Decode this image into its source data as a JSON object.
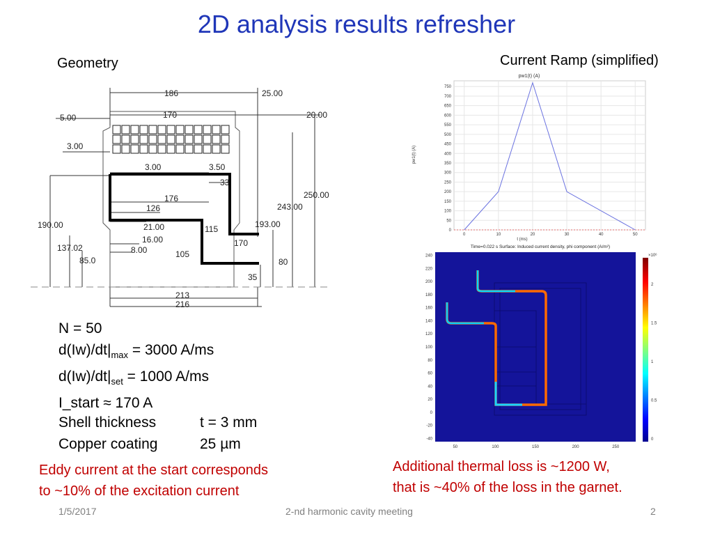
{
  "slide": {
    "title": "2D analysis results refresher",
    "geometry_label": "Geometry",
    "ramp_label": "Current Ramp (simplified)",
    "params": {
      "n": "N = 50",
      "didt_max_a": "d(Iw)/dt|",
      "didt_max_sub": "max",
      "didt_max_b": " = 3000 A/ms",
      "didt_set_a": "d(Iw)/dt|",
      "didt_set_sub": "set",
      "didt_set_b": "  = 1000 A/ms",
      "istart": "I_start ≈ 170 A"
    },
    "materials": {
      "shell_label": "Shell thickness",
      "shell_value": "t = 3 mm",
      "copper_label": "Copper coating",
      "copper_value": "25 µm"
    },
    "note_left": [
      "Eddy current at the start corresponds",
      "to  ~10% of the excitation current"
    ],
    "note_right": [
      "Additional thermal loss is ~1200 W,",
      "that is ~40% of the loss in the garnet."
    ],
    "footer": {
      "date": "1/5/2017",
      "meeting": "2-nd harmonic cavity meeting",
      "page": "2"
    }
  },
  "geometry_dims": {
    "d186": "186",
    "d25": "25.00",
    "d170a": "170",
    "d5": "5.00",
    "d20": "20.00",
    "d3a": "3.00",
    "d3b": "3.00",
    "d350": "3.50",
    "d33": "33",
    "d250": "250.00",
    "d176": "176",
    "d126": "126",
    "d243": "243.00",
    "d190": "190.00",
    "d21": "21.00",
    "d115": "115",
    "d193": "193.00",
    "d16": "16.00",
    "d170b": "170",
    "d137": "137.02",
    "d8": "8.00",
    "d105": "105",
    "d85": "85.0",
    "d80": "80",
    "d35": "35",
    "d213": "213",
    "d216": "216"
  },
  "chart_data": [
    {
      "type": "line",
      "title": "pw1(t) (A)",
      "xlabel": "t (ms)",
      "ylabel": "pw1(t) (A)",
      "x_ticks": [
        "0",
        "10",
        "20",
        "30",
        "40",
        "50"
      ],
      "y_ticks": [
        "0",
        "50",
        "100",
        "150",
        "200",
        "250",
        "300",
        "350",
        "400",
        "450",
        "500",
        "550",
        "600",
        "650",
        "700",
        "750"
      ],
      "xlim": [
        -3,
        53
      ],
      "ylim": [
        0,
        780
      ],
      "grid": true,
      "series": [
        {
          "x": [
            0,
            10,
            20,
            30,
            50
          ],
          "y": [
            0,
            200,
            770,
            200,
            0
          ],
          "color": "#6a72e0"
        }
      ],
      "baseline_color": "#e36a6a"
    },
    {
      "type": "heatmap",
      "title": "Time=0.022 s   Surface: Induced current density, phi component (A/m²)",
      "x_ticks": [
        "50",
        "100",
        "150",
        "200",
        "250"
      ],
      "y_ticks": [
        "240",
        "220",
        "200",
        "180",
        "160",
        "140",
        "120",
        "100",
        "80",
        "60",
        "40",
        "20",
        "0",
        "-20",
        "-40"
      ],
      "xlim": [
        25,
        275
      ],
      "ylim": [
        -45,
        245
      ],
      "colorbar_ticks": [
        "0",
        "0.5",
        "1",
        "1.5",
        "2"
      ],
      "colorbar_exponent": "×10⁶",
      "background_color": "#14149a"
    }
  ]
}
